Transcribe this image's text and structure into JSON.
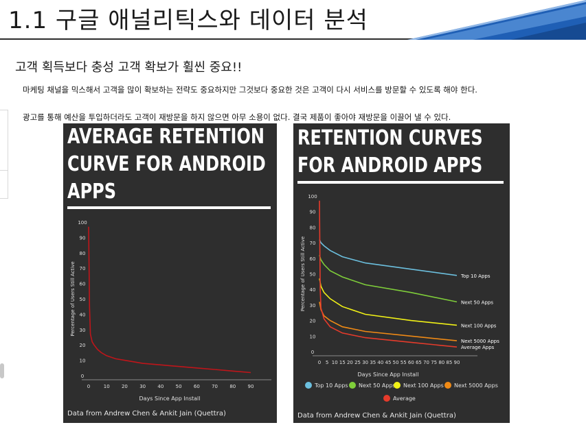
{
  "slide": {
    "title": "1.1 구글 애널리틱스와 데이터 분석",
    "subtitle": "고객 획득보다 충성 고객 확보가 휠씬 중요!!",
    "paragraphs": [
      "마케팅 채널을 믹스해서 고객을 많이 확보하는 전략도 중요하지만 그것보다 중요한 것은 고객이 다시 서비스를 방문할 수 있도록 해야 한다.",
      "광고를 통해 예산을 투입하더라도 고객이 재방문을 하지 않으면 아무 소용이 없다. 결국 제품이 좋아야 재방문을 이끌어 낼 수 있다."
    ],
    "colors": {
      "title_rule": "#2b2b2b",
      "deco_blue": "#1f5fb5",
      "panel_bg": "#2e2e2e"
    }
  },
  "chart_data": [
    {
      "type": "line",
      "title_lines": [
        "AVERAGE RETENTION",
        "CURVE FOR ANDROID",
        "APPS"
      ],
      "xlabel": "Days Since App Install",
      "ylabel": "Percentage of Users Still Active",
      "xticks": [
        "0",
        "10",
        "20",
        "30",
        "40",
        "50",
        "60",
        "70",
        "80",
        "90"
      ],
      "yticks": [
        "0",
        "10",
        "20",
        "30",
        "40",
        "50",
        "60",
        "70",
        "80",
        "90",
        "100"
      ],
      "xlim": [
        0,
        90
      ],
      "ylim": [
        0,
        100
      ],
      "grid": false,
      "credit": "Data from Andrew Chen & Ankit Jain (Quettra)",
      "series": [
        {
          "color": "#c0151a",
          "x": [
            0,
            0.5,
            1,
            2,
            3,
            5,
            7,
            10,
            15,
            20,
            30,
            40,
            50,
            60,
            70,
            80,
            90
          ],
          "y": [
            97,
            45,
            27,
            22,
            20,
            17,
            15,
            13,
            11,
            10,
            8,
            7,
            6,
            5,
            4,
            3,
            2
          ]
        }
      ]
    },
    {
      "type": "line",
      "title_lines": [
        "RETENTION CURVES",
        "FOR ANDROID APPS"
      ],
      "xlabel": "Days Since App Install",
      "ylabel": "Percentage of Users Still Active",
      "xticks": [
        "0",
        "5",
        "10",
        "15",
        "20",
        "25",
        "30",
        "35",
        "40",
        "45",
        "50",
        "55",
        "60",
        "65",
        "70",
        "75",
        "80",
        "85",
        "90"
      ],
      "yticks": [
        "0",
        "10",
        "20",
        "30",
        "40",
        "50",
        "60",
        "70",
        "80",
        "90",
        "100"
      ],
      "xlim": [
        0,
        90
      ],
      "ylim": [
        0,
        100
      ],
      "grid": false,
      "legend_position": "bottom",
      "credit": "Data from Andrew Chen & Ankit Jain (Quettra)",
      "series": [
        {
          "name": "Top 10 Apps",
          "label": "Top 10 Apps",
          "color": "#6cc0df",
          "x": [
            0,
            1,
            3,
            7,
            15,
            30,
            60,
            90
          ],
          "y": [
            72,
            70,
            68,
            65,
            61,
            57,
            53,
            49
          ]
        },
        {
          "name": "Next 50 Apps",
          "label": "Next 50 Apps",
          "color": "#7fce3a",
          "x": [
            0,
            1,
            3,
            7,
            15,
            30,
            60,
            90
          ],
          "y": [
            62,
            59,
            56,
            52,
            48,
            43,
            38,
            32
          ]
        },
        {
          "name": "Next 100 Apps",
          "label": "Next 100 Apps",
          "color": "#f2f216",
          "x": [
            0,
            1,
            3,
            7,
            15,
            30,
            60,
            90
          ],
          "y": [
            47,
            42,
            38,
            34,
            29,
            24,
            20,
            17
          ]
        },
        {
          "name": "Next 5000 Apps",
          "label": "Next 5000 Apps",
          "color": "#f08a15",
          "x": [
            0,
            1,
            3,
            7,
            15,
            30,
            60,
            90
          ],
          "y": [
            32,
            27,
            23,
            20,
            16,
            13,
            10,
            7
          ]
        },
        {
          "name": "Average",
          "label": "Average Apps",
          "color": "#e63b2b",
          "x": [
            0,
            0.5,
            1,
            3,
            7,
            15,
            30,
            60,
            90
          ],
          "y": [
            97,
            40,
            28,
            21,
            16,
            12,
            9,
            6,
            3
          ]
        }
      ]
    }
  ]
}
